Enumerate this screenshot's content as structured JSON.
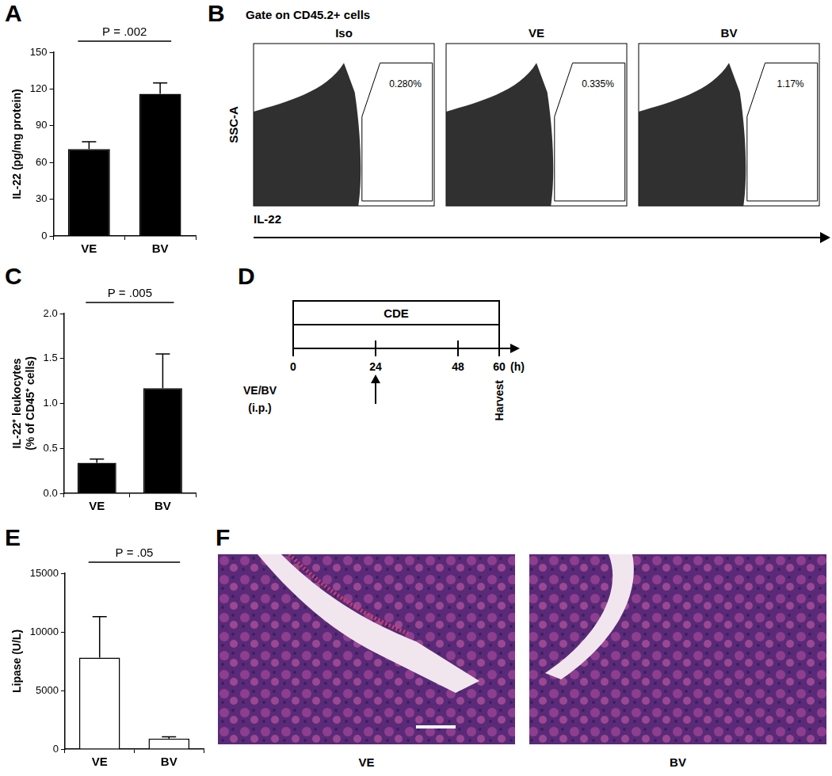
{
  "chart_data": [
    {
      "panel_label": "A",
      "type": "bar",
      "categories": [
        "VE",
        "BV"
      ],
      "values": [
        71,
        116
      ],
      "errors": [
        6,
        9
      ],
      "color": "#000000",
      "y_label": "IL-22 (pg/mg protein)",
      "ylim": [
        0,
        150
      ],
      "yticks": [
        0,
        30,
        60,
        90,
        120,
        150
      ],
      "annotations": [
        {
          "text": "P = .002"
        }
      ],
      "grid": false
    },
    {
      "panel_label": "C",
      "type": "bar",
      "categories": [
        "VE",
        "BV"
      ],
      "values": [
        0.34,
        1.17
      ],
      "errors": [
        0.04,
        0.38
      ],
      "color": "#000000",
      "y_label": [
        "IL-22⁺ leukocytes",
        "(% of CD45⁺ cells)"
      ],
      "ylim": [
        0,
        2
      ],
      "yticks": [
        {
          "value": 0,
          "label": "0.0"
        },
        {
          "value": 0.5,
          "label": "0.5"
        },
        {
          "value": 1,
          "label": "1.0"
        },
        {
          "value": 1.5,
          "label": "1.5"
        },
        {
          "value": 2,
          "label": "2.0"
        }
      ],
      "annotations": [
        {
          "text": "P = .005"
        }
      ],
      "grid": false
    },
    {
      "panel_label": "E",
      "type": "bar",
      "categories": [
        "VE",
        "BV"
      ],
      "values": [
        7800,
        900
      ],
      "errors": [
        3500,
        150
      ],
      "color": "#ffffff",
      "y_label": "Lipase (U/L)",
      "ylim": [
        0,
        15000
      ],
      "yticks": [
        0,
        5000,
        10000,
        15000
      ],
      "annotations": [
        {
          "text": "P = .05"
        }
      ],
      "grid": false
    }
  ],
  "flow_panel": {
    "panel_label": "B",
    "title": "Gate on CD45.2+ cells",
    "y_label": "SSC-A",
    "x_label": "IL-22",
    "plots": [
      {
        "name": "Iso",
        "value": 0.28,
        "label": "0.280%"
      },
      {
        "name": "VE",
        "value": 0.335,
        "label": "0.335%"
      },
      {
        "name": "BV",
        "value": 1.17,
        "label": "1.17%"
      }
    ]
  },
  "timeline": {
    "panel_label": "D",
    "bar_label": "CDE",
    "ticks": [
      0,
      24,
      48,
      60
    ],
    "unit": "(h)",
    "injection": {
      "label": [
        "VE/BV",
        "(i.p.)"
      ],
      "time": 24
    },
    "end_label": "Harvest"
  },
  "histology": {
    "panel_label": "F",
    "images": [
      "VE",
      "BV"
    ]
  }
}
